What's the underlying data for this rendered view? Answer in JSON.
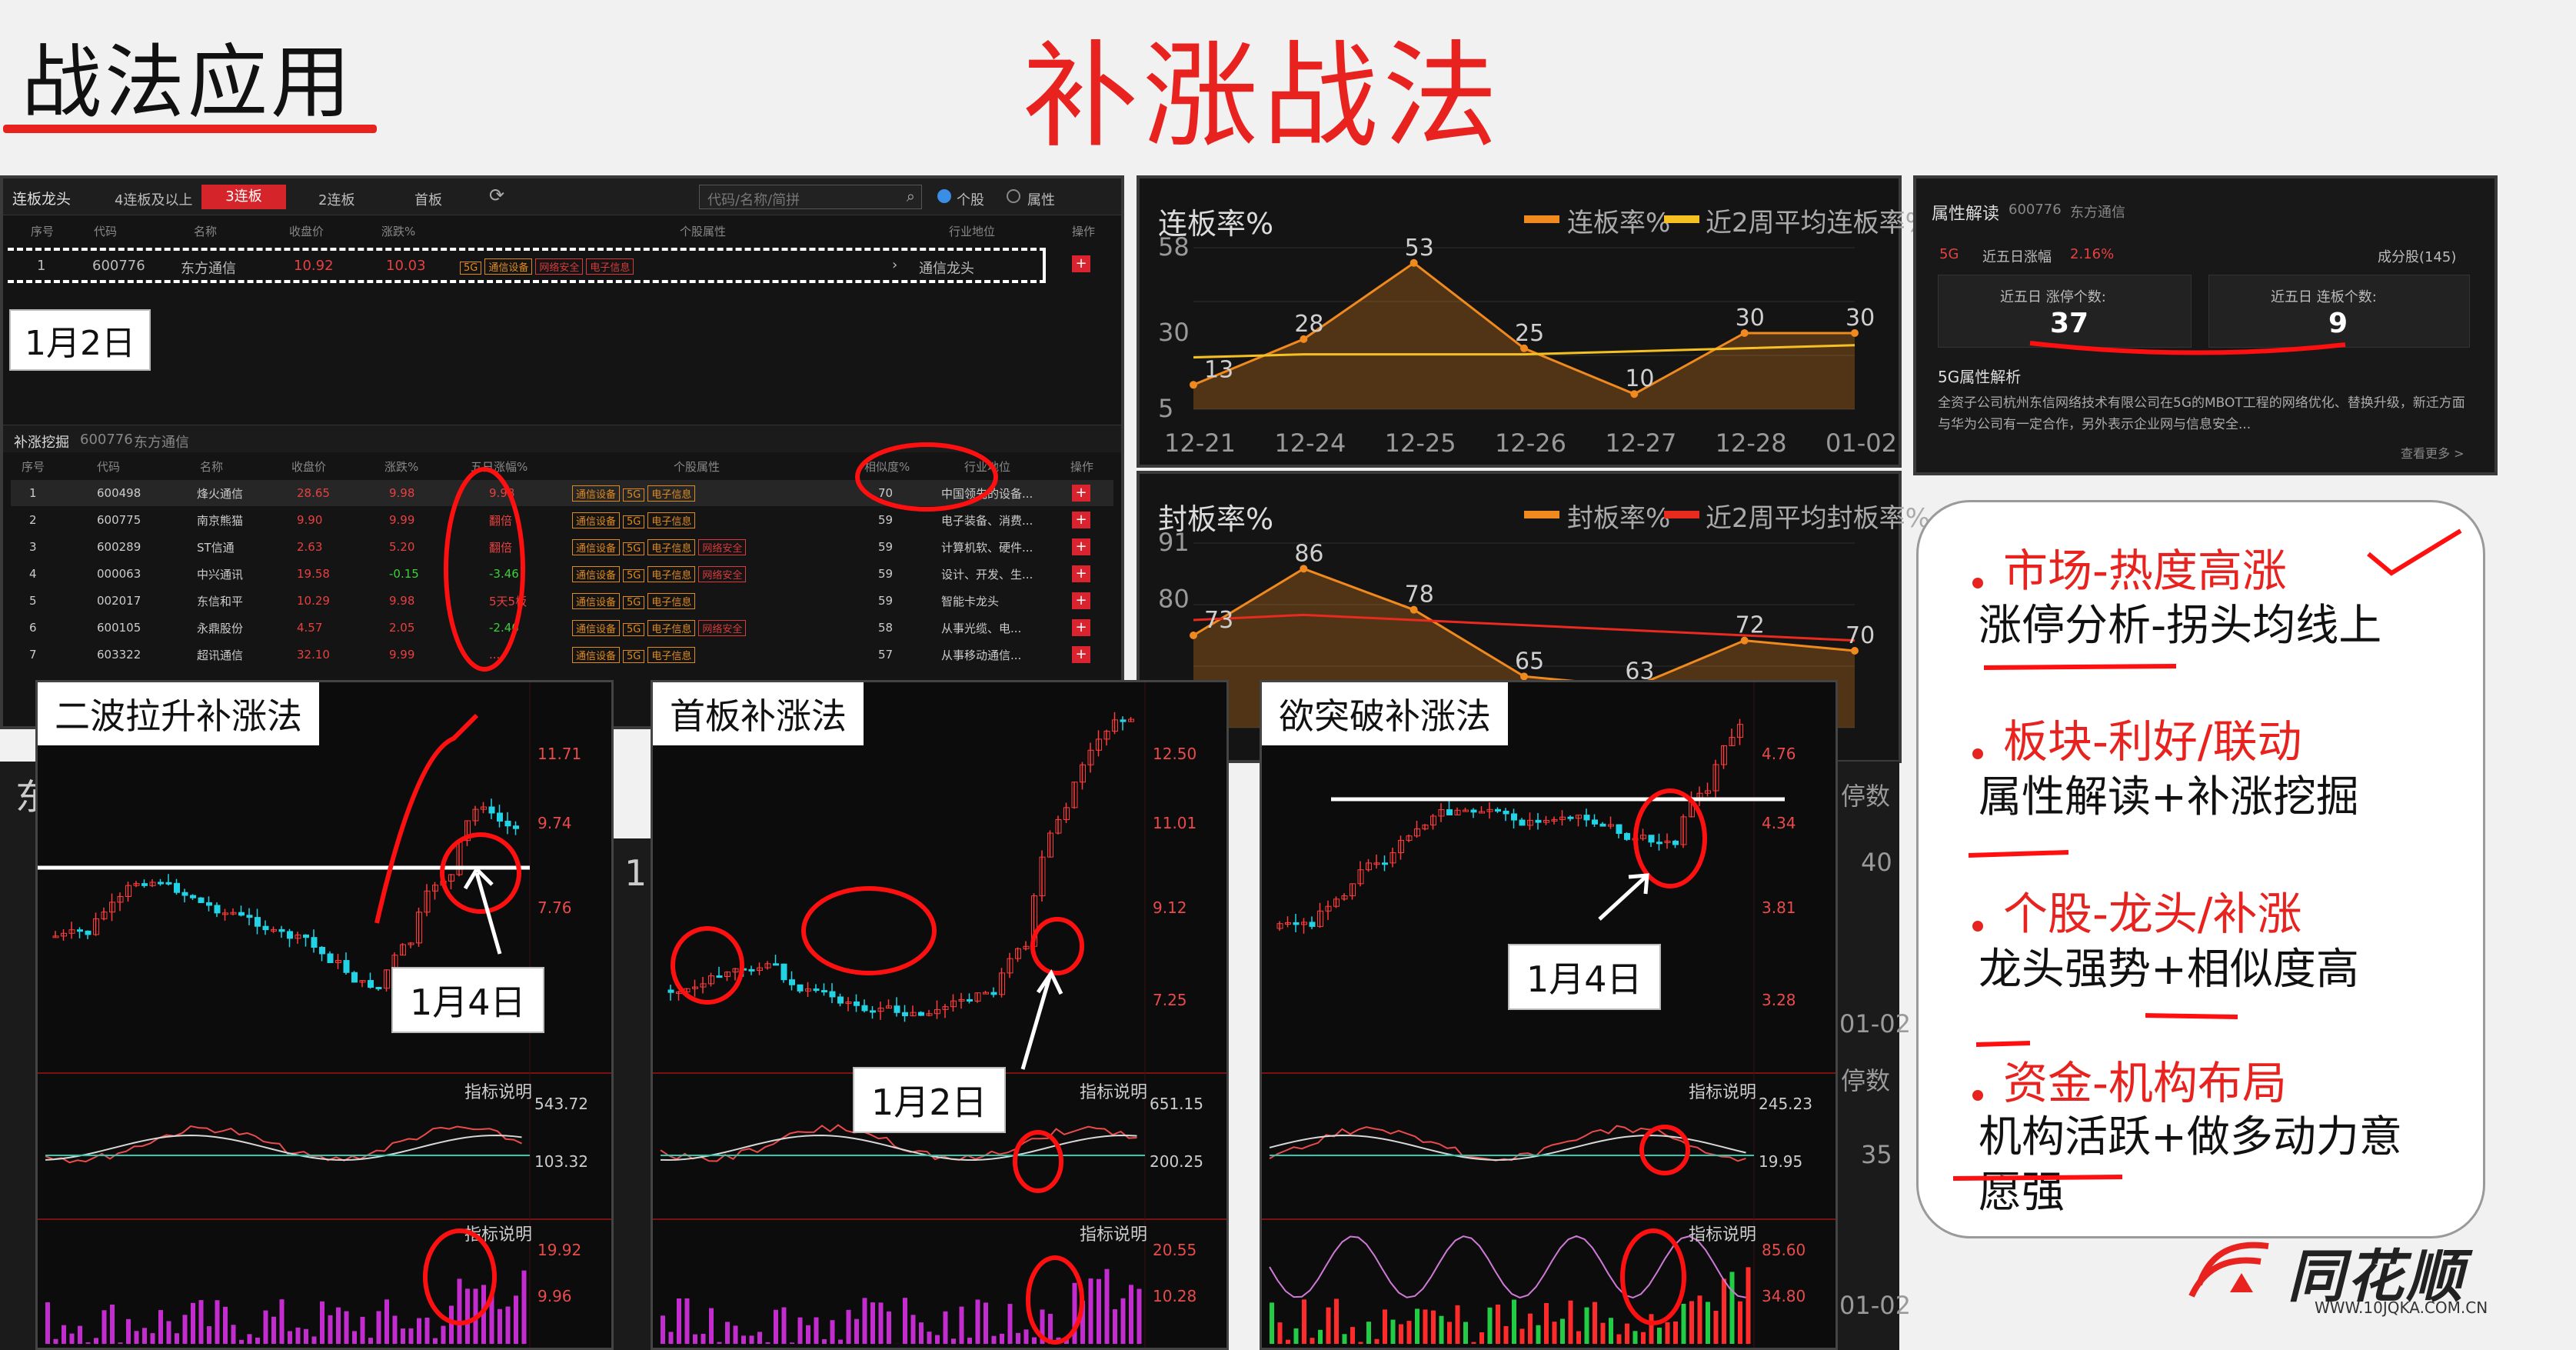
{
  "header": {
    "section_title": "战法应用",
    "main_title": "补涨战法"
  },
  "top_table": {
    "tabs": [
      "连板龙头",
      "4连板及以上",
      "3连板",
      "2连板",
      "首板"
    ],
    "search_placeholder": "代码/名称/简拼",
    "radio_options": [
      "个股",
      "属性"
    ],
    "columns": [
      "序号",
      "代码",
      "名称",
      "收盘价",
      "涨跌%",
      "个股属性",
      "行业地位",
      "操作"
    ],
    "row": {
      "no": "1",
      "code": "600776",
      "name": "东方通信",
      "price": "10.92",
      "chg": "10.03",
      "tags": [
        "5G",
        "通信设备",
        "网络安全",
        "电子信息"
      ],
      "status": "通信龙头"
    },
    "date_label": "1月2日"
  },
  "bottom_table": {
    "title": "补涨挖掘",
    "code": "600776",
    "name": "东方通信",
    "columns": [
      "序号",
      "代码",
      "名称",
      "收盘价",
      "涨跌%",
      "五日涨幅%",
      "个股属性",
      "相似度%",
      "行业地位",
      "操作"
    ],
    "rows": [
      {
        "no": "1",
        "code": "600498",
        "name": "烽火通信",
        "price": "28.65",
        "chg": "9.98",
        "five": "9.98",
        "sim": "70",
        "ind": "中国领先的设备..."
      },
      {
        "no": "2",
        "code": "600775",
        "name": "南京熊猫",
        "price": "9.90",
        "chg": "9.99",
        "five": "翻倍",
        "sim": "59",
        "ind": "电子装备、消费..."
      },
      {
        "no": "3",
        "code": "600289",
        "name": "ST信通",
        "price": "2.63",
        "chg": "5.20",
        "five": "翻倍",
        "sim": "59",
        "ind": "计算机软、硬件..."
      },
      {
        "no": "4",
        "code": "000063",
        "name": "中兴通讯",
        "price": "19.58",
        "chg": "-0.15",
        "five": "-3.46",
        "sim": "59",
        "ind": "设计、开发、生..."
      },
      {
        "no": "5",
        "code": "002017",
        "name": "东信和平",
        "price": "10.29",
        "chg": "9.98",
        "five": "5天5板",
        "sim": "59",
        "ind": "智能卡龙头"
      },
      {
        "no": "6",
        "code": "600105",
        "name": "永鼎股份",
        "price": "4.57",
        "chg": "2.05",
        "five": "-2.46",
        "sim": "58",
        "ind": "从事光缆、电..."
      },
      {
        "no": "7",
        "code": "603322",
        "name": "超讯通信",
        "price": "32.10",
        "chg": "9.99",
        "five": "...",
        "sim": "57",
        "ind": "从事移动通信..."
      }
    ]
  },
  "lbl_chart": {
    "title": "连板率%",
    "legend": [
      "连板率%",
      "近2周平均连板率%"
    ],
    "chart_data": {
      "type": "area",
      "categories": [
        "12-21",
        "12-24",
        "12-25",
        "12-26",
        "12-27",
        "12-28",
        "01-02"
      ],
      "series": [
        {
          "name": "连板率%",
          "values": [
            13,
            28,
            53,
            25,
            10,
            30,
            30
          ]
        },
        {
          "name": "近2周平均连板率%",
          "values": [
            22,
            23,
            23,
            23,
            24,
            25,
            26
          ]
        }
      ],
      "y_ticks": [
        "58",
        "30",
        "5"
      ],
      "ylim": [
        5,
        58
      ]
    }
  },
  "fbl_chart": {
    "title": "封板率%",
    "legend": [
      "封板率%",
      "近2周平均封板率%"
    ],
    "chart_data": {
      "type": "area",
      "series": [
        {
          "name": "封板率%",
          "values": [
            73,
            86,
            78,
            65,
            63,
            72,
            70
          ]
        },
        {
          "name": "近2周平均封板率%",
          "values": [
            76,
            77,
            76,
            75,
            74,
            73,
            72
          ]
        }
      ],
      "y_ticks": [
        "91",
        "80"
      ],
      "ylim": [
        55,
        91
      ]
    }
  },
  "attr_panel": {
    "title": "属性解读",
    "code": "600776",
    "name": "东方通信",
    "sub1": "近五日涨幅",
    "sub1_val": "2.16%",
    "sub_right": "成分股(145)",
    "box1_label": "近五日 涨停个数:",
    "box1_val": "37",
    "box2_label": "近五日 连板个数:",
    "box2_val": "9",
    "analysis_title": "5G属性解析",
    "analysis_text": "全资子公司杭州东信网络技术有限公司在5G的MBOT工程的网络优化、替换升级，新迁方面与华为公司有一定合作，另外表示企业网与信息安全...",
    "more": "查看更多 >"
  },
  "kcharts": [
    {
      "title": "二波拉升补涨法",
      "date": "1月4日",
      "axis": [
        "11.71",
        "9.74",
        "7.76"
      ],
      "ind_axis": [
        "543.72",
        "103.32"
      ],
      "ind2_axis": [
        "19.92",
        "9.96"
      ],
      "ind_label": "指标说明"
    },
    {
      "title": "首板补涨法",
      "date": "1月2日",
      "axis": [
        "12.50",
        "11.01",
        "9.12",
        "7.25"
      ],
      "ind_axis": [
        "651.15",
        "200.25"
      ],
      "ind2_axis": [
        "20.55",
        "10.28"
      ],
      "ind_label": "指标说明"
    },
    {
      "title": "欲突破补涨法",
      "date": "1月4日",
      "axis": [
        "4.76",
        "4.34",
        "3.81",
        "3.28"
      ],
      "ind_axis": [
        "245.23",
        "19.95"
      ],
      "ind2_axis": [
        "85.60",
        "34.80"
      ],
      "ind_label": "指标说明"
    }
  ],
  "side_peeks": {
    "left1": "东",
    "left2": "1",
    "mid": [
      "停数",
      "40",
      "01-02",
      "停数",
      "35",
      "01-02"
    ]
  },
  "right_card": {
    "items": [
      {
        "head": "市场-热度高涨",
        "body": "涨停分析-拐头均线上"
      },
      {
        "head": "板块-利好/联动",
        "body": "属性解读+补涨挖掘"
      },
      {
        "head": "个股-龙头/补涨",
        "body": "龙头强势+相似度高"
      },
      {
        "head": "资金-机构布局",
        "body": "机构活跃+做多动力意",
        "body2": "愿强"
      }
    ]
  },
  "logo": {
    "name": "同花顺",
    "url": "WWW.10JQKA.COM.CN"
  }
}
